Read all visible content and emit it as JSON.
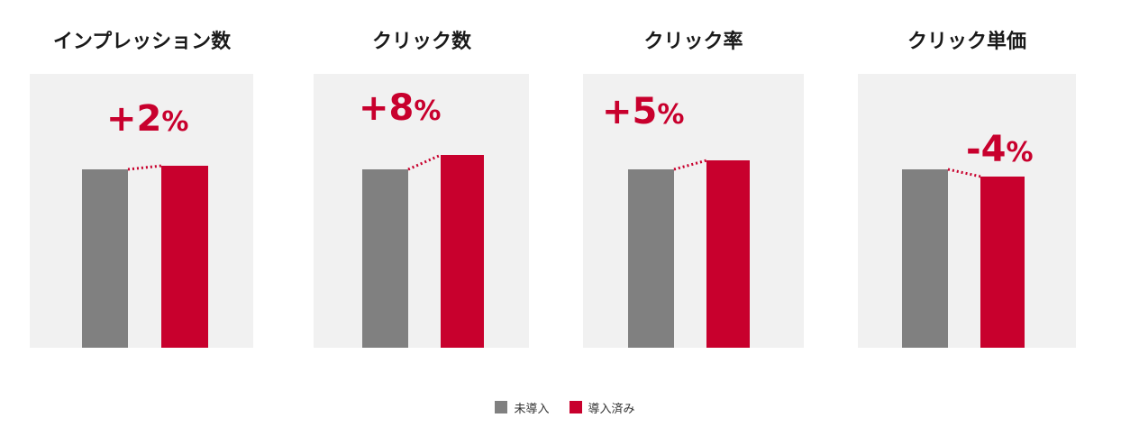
{
  "chart_data": [
    {
      "type": "bar",
      "title": "インプレッション数",
      "categories": [
        "未導入",
        "導入済み"
      ],
      "values": [
        100,
        102
      ],
      "change_label": "+2",
      "change_unit": "%"
    },
    {
      "type": "bar",
      "title": "クリック数",
      "categories": [
        "未導入",
        "導入済み"
      ],
      "values": [
        100,
        108
      ],
      "change_label": "+8",
      "change_unit": "%"
    },
    {
      "type": "bar",
      "title": "クリック率",
      "categories": [
        "未導入",
        "導入済み"
      ],
      "values": [
        100,
        105
      ],
      "change_label": "+5",
      "change_unit": "%"
    },
    {
      "type": "bar",
      "title": "クリック単価",
      "categories": [
        "未導入",
        "導入済み"
      ],
      "values": [
        100,
        96
      ],
      "change_label": "-4",
      "change_unit": "%"
    }
  ],
  "legend": [
    {
      "label": "未導入",
      "color": "#808080"
    },
    {
      "label": "導入済み",
      "color": "#c8002d"
    }
  ],
  "colors": {
    "before": "#808080",
    "after": "#c8002d",
    "panel": "#f1f1f1",
    "highlight": "#c8002d"
  }
}
